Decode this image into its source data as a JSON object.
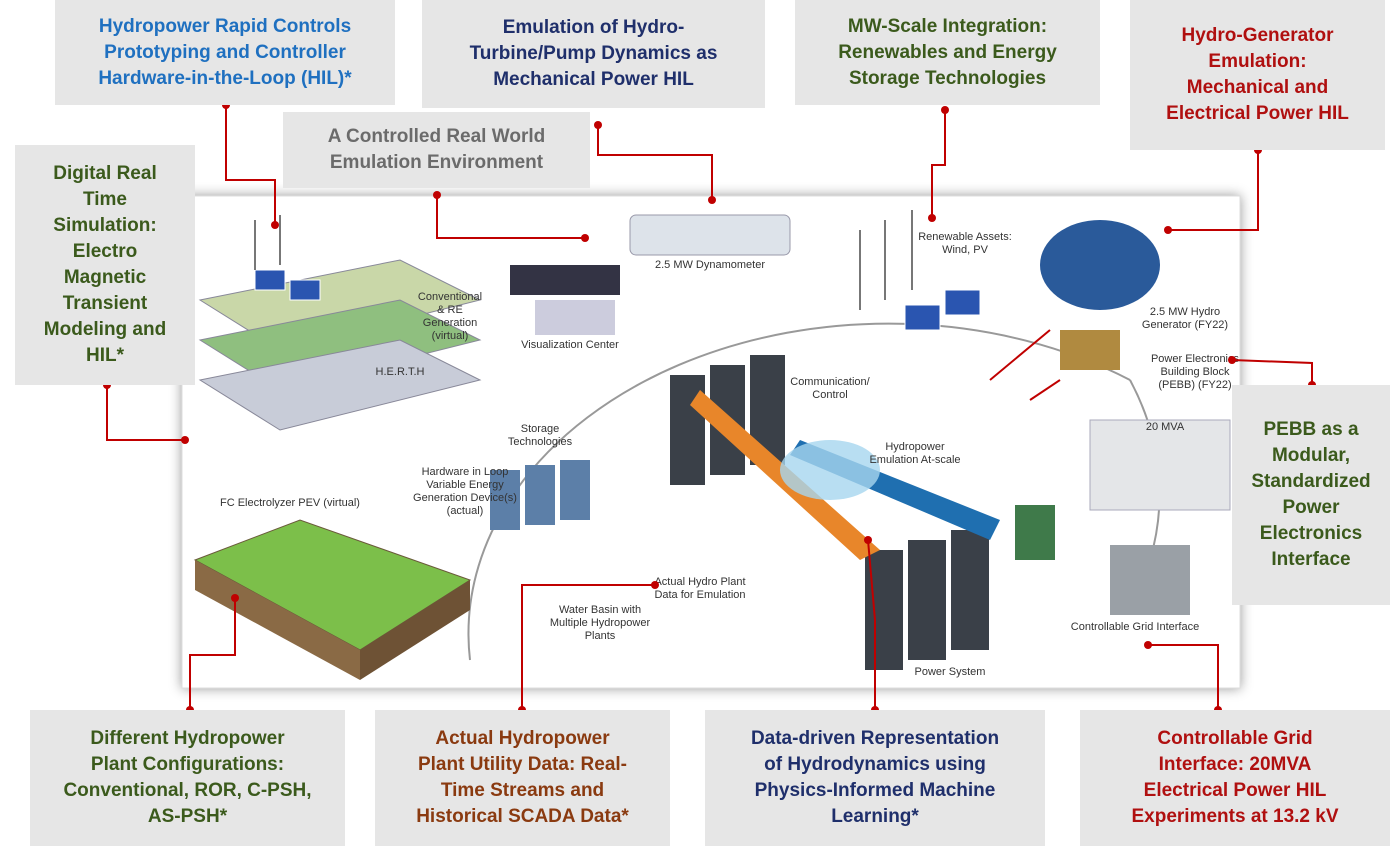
{
  "callouts": [
    {
      "lines": [
        "Hydropower Rapid Controls",
        "Prototyping and Controller",
        "Hardware-in-the-Loop (HIL)*"
      ]
    },
    {
      "lines": [
        "Emulation of Hydro-",
        "Turbine/Pump Dynamics as",
        "Mechanical Power HIL"
      ]
    },
    {
      "lines": [
        "MW-Scale Integration:",
        "Renewables and Energy",
        "Storage Technologies"
      ]
    },
    {
      "lines": [
        "Hydro-Generator",
        "Emulation:",
        "Mechanical and",
        "Electrical Power HIL"
      ]
    },
    {
      "lines": [
        "A Controlled Real World",
        "Emulation Environment"
      ]
    },
    {
      "lines": [
        "Digital Real",
        "Time",
        "Simulation:",
        "Electro",
        "Magnetic",
        "Transient",
        "Modeling and",
        "HIL*"
      ]
    },
    {
      "lines": [
        "PEBB as a",
        "Modular,",
        "Standardized",
        "Power",
        "Electronics",
        "Interface"
      ]
    },
    {
      "lines": [
        "Different Hydropower",
        "Plant Configurations:",
        "Conventional, ROR, C-PSH,",
        "AS-PSH*"
      ]
    },
    {
      "lines": [
        "Actual Hydropower",
        "Plant Utility Data: Real-",
        "Time Streams and",
        "Historical SCADA Data*"
      ]
    },
    {
      "lines": [
        "Data-driven Representation",
        "of Hydrodynamics using",
        "Physics-Informed Machine",
        "Learning*"
      ]
    },
    {
      "lines": [
        "Controllable Grid",
        "Interface: 20MVA",
        "Electrical Power HIL",
        "Experiments at 13.2 kV"
      ]
    }
  ],
  "illustration_labels": [
    {
      "lines": [
        "2.5 MW Dynamometer"
      ]
    },
    {
      "lines": [
        "Renewable Assets:",
        "Wind, PV"
      ]
    },
    {
      "lines": [
        "2.5 MW Hydro",
        "Generator (FY22)"
      ]
    },
    {
      "lines": [
        "Power Electronics",
        "Building Block",
        "(PEBB) (FY22)"
      ]
    },
    {
      "lines": [
        "20 MVA"
      ]
    },
    {
      "lines": [
        "Controllable Grid Interface"
      ]
    },
    {
      "lines": [
        "Power System"
      ]
    },
    {
      "lines": [
        "Communication/",
        "Control"
      ]
    },
    {
      "lines": [
        "Hydropower",
        "Emulation At-scale"
      ]
    },
    {
      "lines": [
        "Visualization Center"
      ]
    },
    {
      "lines": [
        "Storage",
        "Technologies"
      ]
    },
    {
      "lines": [
        "Conventional",
        "& RE",
        "Generation",
        "(virtual)"
      ]
    },
    {
      "lines": [
        "H.E.R.T.H"
      ]
    },
    {
      "lines": [
        "Hardware in Loop",
        "Variable Energy",
        "Generation Device(s)",
        "(actual)"
      ]
    },
    {
      "lines": [
        "FC Electrolyzer PEV (virtual)"
      ]
    },
    {
      "lines": [
        "Actual Hydro Plant",
        "Data for Emulation"
      ]
    },
    {
      "lines": [
        "Water Basin with",
        "Multiple Hydropower",
        "Plants"
      ]
    }
  ]
}
